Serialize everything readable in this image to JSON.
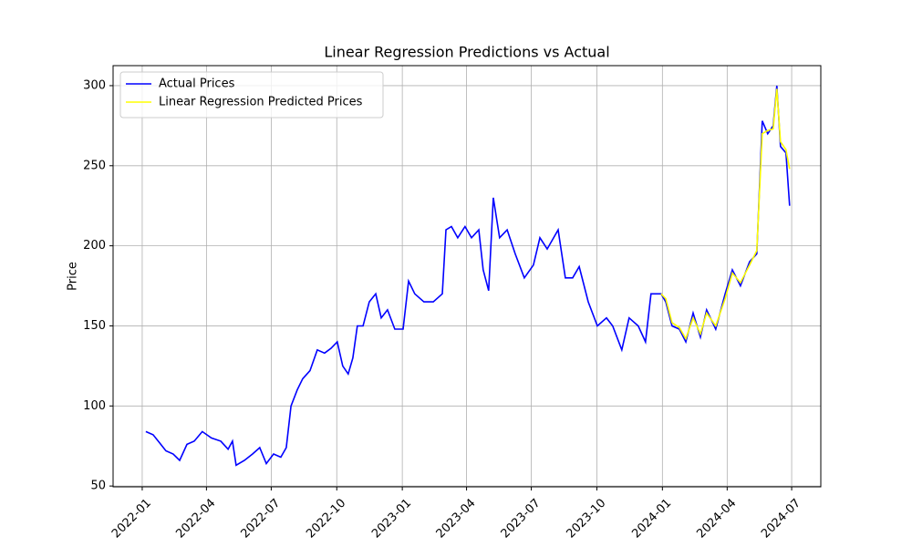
{
  "chart_data": {
    "type": "line",
    "title": "Linear Regression Predictions vs Actual",
    "y_label": "Price",
    "x": [
      2022.014,
      2022.042,
      2022.067,
      2022.091,
      2022.119,
      2022.144,
      2022.172,
      2022.2,
      2022.231,
      2022.266,
      2022.302,
      2022.33,
      2022.347,
      2022.361,
      2022.393,
      2022.424,
      2022.452,
      2022.477,
      2022.505,
      2022.533,
      2022.554,
      2022.572,
      2022.596,
      2022.617,
      2022.645,
      2022.673,
      2022.701,
      2022.726,
      2022.75,
      2022.771,
      2022.792,
      2022.81,
      2022.827,
      2022.849,
      2022.873,
      2022.898,
      2022.919,
      2022.943,
      2022.971,
      2023.003,
      2023.024,
      2023.048,
      2023.083,
      2023.119,
      2023.154,
      2023.168,
      2023.189,
      2023.213,
      2023.241,
      2023.266,
      2023.294,
      2023.311,
      2023.332,
      2023.35,
      2023.374,
      2023.403,
      2023.434,
      2023.469,
      2023.504,
      2023.529,
      2023.557,
      2023.599,
      2023.627,
      2023.655,
      2023.68,
      2023.715,
      2023.75,
      2023.785,
      2023.809,
      2023.844,
      2023.872,
      2023.907,
      2023.935,
      2023.956,
      2023.995,
      2024.013,
      2024.037,
      2024.065,
      2024.09,
      2024.118,
      2024.146,
      2024.17,
      2024.205,
      2024.241,
      2024.269,
      2024.3,
      2024.335,
      2024.363,
      2024.384,
      2024.405,
      2024.426,
      2024.44,
      2024.454,
      2024.475,
      2024.489
    ],
    "series": [
      {
        "name": "Actual Prices",
        "color": "#0000ff",
        "values": [
          84,
          82,
          77,
          72,
          70,
          66,
          76,
          78,
          84,
          80,
          78,
          73,
          78,
          63,
          66,
          70,
          74,
          64,
          70,
          68,
          74,
          100,
          110,
          117,
          122,
          135,
          133,
          136,
          140,
          125,
          120,
          130,
          150,
          150,
          165,
          170,
          155,
          160,
          148,
          148,
          178,
          170,
          165,
          165,
          170,
          210,
          212,
          205,
          212,
          205,
          210,
          185,
          172,
          230,
          205,
          210,
          195,
          180,
          188,
          205,
          198,
          210,
          180,
          180,
          187,
          165,
          150,
          155,
          150,
          135,
          155,
          150,
          140,
          170,
          170,
          165,
          150,
          148,
          140,
          158,
          143,
          160,
          148,
          170,
          185,
          175,
          190,
          195,
          278,
          270,
          275,
          300,
          262,
          258,
          225
        ]
      },
      {
        "name": "Linear Regression Predicted Prices",
        "color": "#ffff00",
        "values": [
          null,
          null,
          null,
          null,
          null,
          null,
          null,
          null,
          null,
          null,
          null,
          null,
          null,
          null,
          null,
          null,
          null,
          null,
          null,
          null,
          null,
          null,
          null,
          null,
          null,
          null,
          null,
          null,
          null,
          null,
          null,
          null,
          null,
          null,
          null,
          null,
          null,
          null,
          null,
          null,
          null,
          null,
          null,
          null,
          null,
          null,
          null,
          null,
          null,
          null,
          null,
          null,
          null,
          null,
          null,
          null,
          null,
          null,
          null,
          null,
          null,
          null,
          null,
          null,
          null,
          null,
          null,
          null,
          null,
          null,
          null,
          null,
          null,
          null,
          170,
          167,
          152,
          149,
          142,
          155,
          145,
          158,
          150,
          167,
          183,
          177,
          188,
          197,
          270,
          272,
          273,
          298,
          265,
          260,
          248
        ]
      }
    ],
    "xlim": [
      2021.888,
      2024.609
    ],
    "xticks": [
      {
        "value": 2022.0,
        "label": "2022-01"
      },
      {
        "value": 2022.247,
        "label": "2022-04"
      },
      {
        "value": 2022.496,
        "label": "2022-07"
      },
      {
        "value": 2022.748,
        "label": "2022-10"
      },
      {
        "value": 2023.0,
        "label": "2023-01"
      },
      {
        "value": 2023.247,
        "label": "2023-04"
      },
      {
        "value": 2023.496,
        "label": "2023-07"
      },
      {
        "value": 2023.748,
        "label": "2023-10"
      },
      {
        "value": 2024.0,
        "label": "2024-01"
      },
      {
        "value": 2024.249,
        "label": "2024-04"
      },
      {
        "value": 2024.497,
        "label": "2024-07"
      }
    ],
    "ylim": [
      49.5,
      312.5
    ],
    "yticks": [
      50,
      100,
      150,
      200,
      250,
      300
    ],
    "grid": true,
    "legend": "upper-left"
  }
}
